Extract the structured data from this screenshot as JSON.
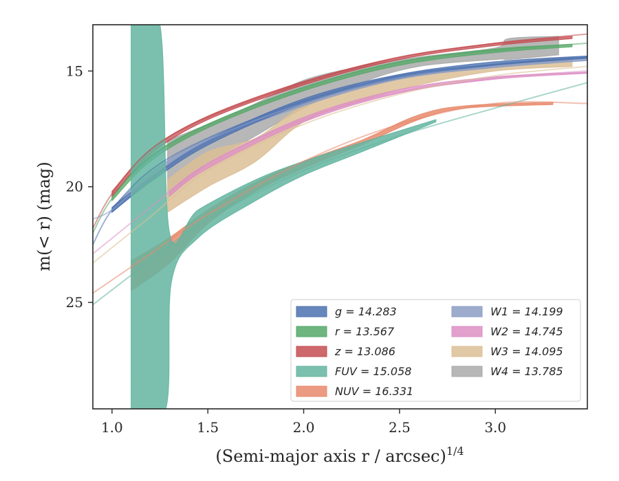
{
  "chart_data": {
    "type": "line",
    "xlabel": "(Semi-major axis r / arcsec)",
    "xlabel_sup": "1/4",
    "ylabel": "m(< r) (mag)",
    "xlim": [
      0.9,
      3.48
    ],
    "ylim": [
      29.6,
      13.0
    ],
    "y_inverted": true,
    "grid": false,
    "legend_position": "lower-right",
    "xticks": [
      {
        "value": 1.0,
        "label": "1.0"
      },
      {
        "value": 1.5,
        "label": "1.5"
      },
      {
        "value": 2.0,
        "label": "2.0"
      },
      {
        "value": 2.5,
        "label": "2.5"
      },
      {
        "value": 3.0,
        "label": "3.0"
      }
    ],
    "yticks": [
      {
        "value": 15,
        "label": "15"
      },
      {
        "value": 20,
        "label": "20"
      },
      {
        "value": 25,
        "label": "25"
      }
    ],
    "series": [
      {
        "id": "g",
        "legend": "g = 14.283",
        "color": "#4c72b0",
        "model": [
          [
            0.9,
            22.5
          ],
          [
            1.0,
            21.0
          ],
          [
            1.2,
            19.3
          ],
          [
            1.5,
            17.9
          ],
          [
            2.0,
            16.3
          ],
          [
            2.5,
            15.2
          ],
          [
            3.0,
            14.7
          ],
          [
            3.48,
            14.4
          ]
        ],
        "upper": [
          [
            1.0,
            21.1
          ],
          [
            1.2,
            19.8
          ],
          [
            1.5,
            18.2
          ],
          [
            2.0,
            16.4
          ],
          [
            2.5,
            15.3
          ],
          [
            3.0,
            14.75
          ],
          [
            3.48,
            14.45
          ]
        ],
        "lower": [
          [
            1.0,
            20.9
          ],
          [
            1.2,
            19.6
          ],
          [
            1.5,
            18.0
          ],
          [
            2.0,
            16.2
          ],
          [
            2.5,
            15.15
          ],
          [
            3.0,
            14.6
          ],
          [
            3.48,
            14.35
          ]
        ]
      },
      {
        "id": "r",
        "legend": "r = 13.567",
        "color": "#55a868",
        "model": [
          [
            0.9,
            22.0
          ],
          [
            1.0,
            20.5
          ],
          [
            1.2,
            18.7
          ],
          [
            1.5,
            17.3
          ],
          [
            2.0,
            15.7
          ],
          [
            2.5,
            14.6
          ],
          [
            3.0,
            14.1
          ],
          [
            3.48,
            13.8
          ]
        ],
        "upper": [
          [
            1.0,
            20.6
          ],
          [
            1.2,
            18.9
          ],
          [
            1.5,
            17.45
          ],
          [
            2.0,
            15.85
          ],
          [
            2.5,
            14.75
          ],
          [
            3.0,
            14.2
          ],
          [
            3.4,
            13.95
          ]
        ],
        "lower": [
          [
            1.0,
            20.4
          ],
          [
            1.2,
            18.7
          ],
          [
            1.5,
            17.3
          ],
          [
            2.0,
            15.7
          ],
          [
            2.5,
            14.6
          ],
          [
            3.0,
            14.05
          ],
          [
            3.4,
            13.85
          ]
        ]
      },
      {
        "id": "z",
        "legend": "z = 13.086",
        "color": "#c44e52",
        "model": [
          [
            0.9,
            21.8
          ],
          [
            1.0,
            20.3
          ],
          [
            1.2,
            18.4
          ],
          [
            1.5,
            17.0
          ],
          [
            2.0,
            15.5
          ],
          [
            2.5,
            14.4
          ],
          [
            3.0,
            13.8
          ],
          [
            3.48,
            13.4
          ]
        ],
        "upper": [
          [
            1.0,
            20.4
          ],
          [
            1.2,
            18.6
          ],
          [
            1.5,
            17.1
          ],
          [
            2.0,
            15.6
          ],
          [
            2.5,
            14.5
          ],
          [
            3.0,
            13.9
          ],
          [
            3.4,
            13.6
          ]
        ],
        "lower": [
          [
            1.0,
            20.2
          ],
          [
            1.2,
            18.4
          ],
          [
            1.5,
            16.95
          ],
          [
            2.0,
            15.45
          ],
          [
            2.5,
            14.4
          ],
          [
            3.0,
            13.8
          ],
          [
            3.4,
            13.5
          ]
        ]
      },
      {
        "id": "FUV",
        "legend": "FUV = 15.058",
        "color": "#64b5a0",
        "model": [
          [
            0.9,
            25.1
          ],
          [
            1.2,
            23.2
          ],
          [
            1.5,
            21.4
          ],
          [
            2.0,
            19.3
          ],
          [
            2.5,
            17.8
          ],
          [
            3.0,
            16.6
          ],
          [
            3.48,
            15.5
          ]
        ],
        "upper": [
          [
            1.1,
            13.0
          ],
          [
            1.25,
            13.0
          ],
          [
            1.3,
            22.0
          ],
          [
            1.45,
            21.0
          ],
          [
            1.75,
            19.7
          ],
          [
            2.0,
            18.9
          ],
          [
            2.3,
            18.1
          ],
          [
            2.69,
            17.1
          ]
        ],
        "lower": [
          [
            1.1,
            29.6
          ],
          [
            1.28,
            29.6
          ],
          [
            1.31,
            24.1
          ],
          [
            1.45,
            22.2
          ],
          [
            1.75,
            20.6
          ],
          [
            2.0,
            19.5
          ],
          [
            2.3,
            18.5
          ],
          [
            2.69,
            17.2
          ]
        ]
      },
      {
        "id": "NUV",
        "legend": "NUV = 16.331",
        "color": "#e8896c",
        "model": [
          [
            0.9,
            24.6
          ],
          [
            1.2,
            22.9
          ],
          [
            1.5,
            21.2
          ],
          [
            2.0,
            18.9
          ],
          [
            2.5,
            17.3
          ],
          [
            3.0,
            16.4
          ],
          [
            3.48,
            16.4
          ]
        ],
        "upper": [
          [
            1.1,
            23.2
          ],
          [
            1.3,
            22.2
          ],
          [
            1.5,
            21.0
          ],
          [
            1.75,
            19.8
          ],
          [
            2.0,
            18.9
          ],
          [
            2.3,
            18.0
          ],
          [
            2.6,
            16.9
          ],
          [
            2.85,
            16.5
          ],
          [
            3.3,
            16.35
          ]
        ],
        "lower": [
          [
            1.1,
            24.5
          ],
          [
            1.3,
            23.3
          ],
          [
            1.5,
            21.6
          ],
          [
            1.75,
            20.2
          ],
          [
            2.0,
            19.2
          ],
          [
            2.3,
            18.2
          ],
          [
            2.6,
            17.1
          ],
          [
            2.85,
            16.6
          ],
          [
            3.3,
            16.45
          ]
        ]
      },
      {
        "id": "W1",
        "legend": "W1 = 14.199",
        "color": "#8c9dc4",
        "model": [
          [
            0.9,
            21.4
          ],
          [
            1.0,
            21.0
          ],
          [
            1.2,
            19.6
          ],
          [
            1.5,
            18.0
          ],
          [
            2.0,
            16.4
          ],
          [
            2.5,
            15.3
          ],
          [
            3.0,
            14.8
          ],
          [
            3.48,
            14.5
          ]
        ],
        "upper": [
          [
            1.0,
            20.9
          ],
          [
            1.2,
            19.4
          ],
          [
            1.5,
            17.9
          ],
          [
            2.0,
            16.3
          ],
          [
            2.5,
            15.2
          ],
          [
            3.0,
            14.7
          ],
          [
            3.48,
            14.4
          ]
        ],
        "lower": [
          [
            1.0,
            21.1
          ],
          [
            1.2,
            19.7
          ],
          [
            1.5,
            18.1
          ],
          [
            2.0,
            16.5
          ],
          [
            2.5,
            15.35
          ],
          [
            3.0,
            14.85
          ],
          [
            3.48,
            14.55
          ]
        ]
      },
      {
        "id": "W2",
        "legend": "W2 = 14.745",
        "color": "#dd8fc4",
        "model": [
          [
            0.9,
            22.9
          ],
          [
            1.2,
            20.9
          ],
          [
            1.5,
            19.0
          ],
          [
            2.0,
            17.1
          ],
          [
            2.5,
            15.9
          ],
          [
            3.0,
            15.3
          ],
          [
            3.48,
            15.0
          ]
        ],
        "upper": [
          [
            1.3,
            20.2
          ],
          [
            1.5,
            19.0
          ],
          [
            2.0,
            17.0
          ],
          [
            2.5,
            15.8
          ],
          [
            3.0,
            15.25
          ],
          [
            3.48,
            15.05
          ]
        ],
        "lower": [
          [
            1.3,
            20.4
          ],
          [
            1.5,
            19.2
          ],
          [
            2.0,
            17.2
          ],
          [
            2.5,
            15.95
          ],
          [
            3.0,
            15.35
          ],
          [
            3.48,
            15.1
          ]
        ]
      },
      {
        "id": "W3",
        "legend": "W3 = 14.095",
        "color": "#dcbf96",
        "model": [
          [
            0.9,
            23.3
          ],
          [
            1.2,
            21.3
          ],
          [
            1.5,
            19.3
          ],
          [
            2.0,
            17.3
          ],
          [
            2.5,
            16.0
          ],
          [
            3.0,
            15.2
          ],
          [
            3.48,
            14.8
          ]
        ],
        "upper": [
          [
            1.29,
            19.7
          ],
          [
            1.5,
            18.5
          ],
          [
            1.75,
            17.9
          ],
          [
            2.0,
            16.5
          ],
          [
            2.3,
            15.7
          ],
          [
            2.6,
            15.2
          ],
          [
            3.0,
            14.7
          ],
          [
            3.4,
            14.4
          ]
        ],
        "lower": [
          [
            1.29,
            21.1
          ],
          [
            1.5,
            20.0
          ],
          [
            1.75,
            18.9
          ],
          [
            2.0,
            17.2
          ],
          [
            2.3,
            16.3
          ],
          [
            2.6,
            15.6
          ],
          [
            3.0,
            15.0
          ],
          [
            3.4,
            14.8
          ]
        ]
      },
      {
        "id": "W4",
        "legend": "W4 = 13.785",
        "color": "#aaaaaa",
        "model": [],
        "upper": [
          [
            1.29,
            18.0
          ],
          [
            1.5,
            17.3
          ],
          [
            1.75,
            16.4
          ],
          [
            2.0,
            15.4
          ],
          [
            2.3,
            14.8
          ],
          [
            2.6,
            14.4
          ],
          [
            3.0,
            14.0
          ],
          [
            3.07,
            13.6
          ],
          [
            3.33,
            13.5
          ]
        ],
        "lower": [
          [
            1.29,
            20.5
          ],
          [
            1.5,
            19.0
          ],
          [
            1.75,
            17.8
          ],
          [
            2.0,
            16.6
          ],
          [
            2.3,
            15.5
          ],
          [
            2.6,
            14.8
          ],
          [
            3.0,
            14.5
          ],
          [
            3.07,
            14.5
          ],
          [
            3.33,
            14.3
          ]
        ]
      }
    ]
  }
}
